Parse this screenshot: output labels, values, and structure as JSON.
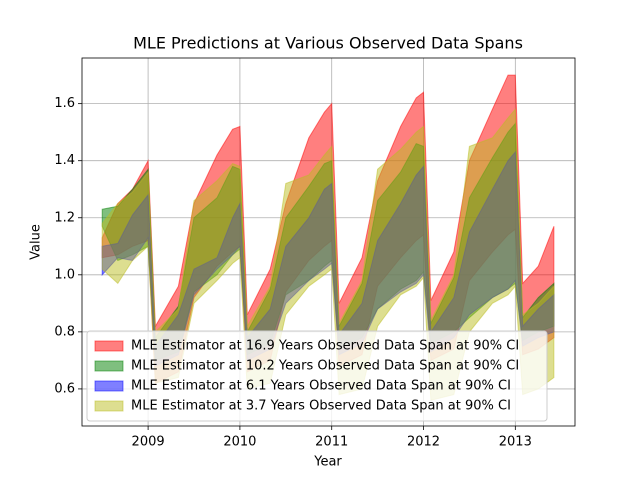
{
  "chart_data": {
    "type": "band",
    "title": "MLE Predictions at Various Observed Data Spans",
    "xlabel": "Year",
    "ylabel": "Value",
    "x": [
      2008.5,
      2008.67,
      2008.83,
      2009.0,
      2009.08,
      2009.33,
      2009.5,
      2009.75,
      2009.92,
      2010.0,
      2010.08,
      2010.33,
      2010.5,
      2010.75,
      2010.92,
      2011.0,
      2011.08,
      2011.33,
      2011.5,
      2011.75,
      2011.92,
      2012.0,
      2012.08,
      2012.33,
      2012.5,
      2012.75,
      2012.92,
      2013.0,
      2013.08,
      2013.25,
      2013.42
    ],
    "series": [
      {
        "name": "MLE Estimator at 16.9 Years Observed Data Span at 90% CI",
        "color": "#ff0000",
        "upper": [
          1.13,
          1.25,
          1.3,
          1.4,
          0.82,
          0.96,
          1.25,
          1.42,
          1.51,
          1.52,
          0.86,
          1.02,
          1.25,
          1.48,
          1.57,
          1.6,
          0.9,
          1.06,
          1.33,
          1.52,
          1.62,
          1.64,
          0.91,
          1.08,
          1.4,
          1.58,
          1.7,
          1.7,
          0.97,
          1.03,
          1.17
        ],
        "lower": [
          1.06,
          1.07,
          1.1,
          1.12,
          0.62,
          0.66,
          0.92,
          1.03,
          1.08,
          1.1,
          0.66,
          0.7,
          0.94,
          1.05,
          1.1,
          1.12,
          0.68,
          0.72,
          0.96,
          1.06,
          1.12,
          1.14,
          0.7,
          0.74,
          0.98,
          1.08,
          1.14,
          1.16,
          0.72,
          0.74,
          0.78
        ]
      },
      {
        "name": "MLE Estimator at 10.2 Years Observed Data Span at 90% CI",
        "color": "#008000",
        "upper": [
          1.23,
          1.24,
          1.3,
          1.37,
          0.78,
          0.89,
          1.2,
          1.27,
          1.38,
          1.37,
          0.8,
          0.95,
          1.2,
          1.31,
          1.39,
          1.4,
          0.82,
          0.97,
          1.26,
          1.36,
          1.46,
          1.45,
          0.83,
          0.99,
          1.27,
          1.41,
          1.5,
          1.53,
          0.85,
          0.92,
          0.97
        ],
        "lower": [
          1.17,
          1.05,
          1.07,
          1.1,
          0.7,
          0.73,
          0.94,
          1.0,
          1.07,
          1.09,
          0.72,
          0.76,
          0.93,
          0.98,
          1.03,
          1.05,
          0.74,
          0.78,
          0.88,
          0.95,
          0.98,
          1.01,
          0.76,
          0.8,
          0.85,
          0.92,
          0.95,
          0.97,
          0.77,
          0.8,
          0.82
        ]
      },
      {
        "name": "MLE Estimator at 6.1 Years Observed Data Span at 90% CI",
        "color": "#0000ff",
        "upper": [
          1.1,
          1.11,
          1.21,
          1.28,
          0.75,
          0.86,
          1.02,
          1.06,
          1.2,
          1.25,
          0.78,
          0.88,
          1.1,
          1.2,
          1.3,
          1.32,
          0.79,
          0.9,
          1.12,
          1.25,
          1.35,
          1.38,
          0.8,
          0.92,
          1.15,
          1.3,
          1.4,
          1.43,
          0.82,
          0.88,
          0.93
        ],
        "lower": [
          1.0,
          1.06,
          1.05,
          1.13,
          0.68,
          0.72,
          0.93,
          1.02,
          1.07,
          1.1,
          0.7,
          0.74,
          0.9,
          0.98,
          1.02,
          1.04,
          0.72,
          0.76,
          0.88,
          0.94,
          0.97,
          1.0,
          0.73,
          0.78,
          0.86,
          0.92,
          0.95,
          0.98,
          0.75,
          0.78,
          0.8
        ]
      },
      {
        "name": "MLE Estimator at 3.7 Years Observed Data Span at 90% CI",
        "color": "#bcbd22",
        "upper": [
          1.18,
          1.25,
          1.29,
          1.36,
          0.8,
          0.88,
          1.26,
          1.33,
          1.39,
          1.38,
          0.82,
          0.96,
          1.32,
          1.35,
          1.42,
          1.45,
          0.83,
          0.98,
          1.37,
          1.44,
          1.5,
          1.52,
          0.84,
          1.0,
          1.45,
          1.48,
          1.55,
          1.58,
          0.86,
          0.9,
          0.96
        ],
        "lower": [
          1.02,
          0.97,
          1.05,
          1.1,
          0.62,
          0.64,
          0.9,
          0.98,
          1.04,
          1.06,
          0.6,
          0.62,
          0.86,
          0.96,
          1.0,
          1.02,
          0.58,
          0.6,
          0.82,
          0.93,
          0.96,
          0.99,
          0.56,
          0.58,
          0.8,
          0.9,
          0.93,
          0.96,
          0.58,
          0.6,
          0.64
        ]
      }
    ],
    "alpha": 0.5,
    "xlim": [
      2008.28,
      2013.65
    ],
    "ylim": [
      0.47,
      1.76
    ],
    "xticks": [
      2009,
      2010,
      2011,
      2012,
      2013
    ],
    "yticks": [
      0.6,
      0.8,
      {
        "value": 1,
        "label": "1.0"
      },
      1.2,
      1.4,
      1.6
    ],
    "grid": true,
    "legend": "lower left"
  }
}
